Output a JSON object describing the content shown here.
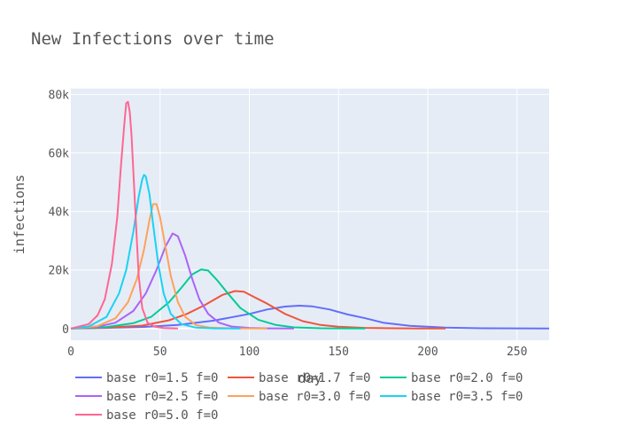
{
  "chart_data": {
    "type": "line",
    "title": "New Infections over time",
    "xlabel": "day",
    "ylabel": "infections",
    "xlim": [
      0,
      268
    ],
    "ylim": [
      -4000,
      82000
    ],
    "x_ticks": [
      0,
      50,
      100,
      150,
      200,
      250
    ],
    "x_tick_labels": [
      "0",
      "50",
      "100",
      "150",
      "200",
      "250"
    ],
    "y_ticks": [
      0,
      20000,
      40000,
      60000,
      80000
    ],
    "y_tick_labels": [
      "0",
      "20k",
      "40k",
      "60k",
      "80k"
    ],
    "grid": true,
    "legend_position": "bottom",
    "series": [
      {
        "name": "base r0=1.5 f=0",
        "color": "#636efa",
        "x": [
          0,
          20,
          40,
          60,
          80,
          100,
          110,
          120,
          128,
          135,
          145,
          155,
          165,
          175,
          190,
          210,
          230,
          268
        ],
        "y": [
          0,
          200,
          500,
          1200,
          2700,
          5000,
          6500,
          7500,
          7800,
          7600,
          6500,
          4800,
          3500,
          2000,
          900,
          300,
          100,
          0
        ]
      },
      {
        "name": "base r0=1.7 f=0",
        "color": "#ef553b",
        "x": [
          0,
          20,
          40,
          55,
          65,
          75,
          85,
          92,
          97,
          102,
          110,
          120,
          130,
          140,
          150,
          165,
          180,
          195,
          210
        ],
        "y": [
          0,
          300,
          1000,
          2800,
          5000,
          8000,
          11500,
          12800,
          12600,
          11000,
          8500,
          5000,
          2500,
          1200,
          600,
          200,
          80,
          20,
          0
        ]
      },
      {
        "name": "base r0=2.0 f=0",
        "color": "#00cc96",
        "x": [
          0,
          20,
          35,
          45,
          55,
          62,
          68,
          73,
          77,
          82,
          88,
          95,
          105,
          115,
          125,
          140,
          165
        ],
        "y": [
          0,
          500,
          1800,
          4000,
          9000,
          14000,
          18500,
          20200,
          19800,
          16500,
          12000,
          7000,
          3000,
          1200,
          400,
          100,
          0
        ]
      },
      {
        "name": "base r0=2.5 f=0",
        "color": "#ab63fa",
        "x": [
          0,
          15,
          25,
          35,
          42,
          48,
          53,
          57,
          60,
          64,
          68,
          72,
          77,
          83,
          90,
          100,
          110,
          125
        ],
        "y": [
          0,
          600,
          2000,
          6000,
          12000,
          20000,
          28000,
          32500,
          31500,
          25000,
          17000,
          10000,
          5000,
          2000,
          700,
          200,
          50,
          0
        ]
      },
      {
        "name": "base r0=3.0 f=0",
        "color": "#ffa15a",
        "x": [
          0,
          15,
          25,
          32,
          37,
          41,
          44,
          46,
          48,
          50,
          53,
          56,
          60,
          64,
          70,
          78,
          90,
          110
        ],
        "y": [
          0,
          800,
          3500,
          9000,
          17000,
          27000,
          37000,
          42500,
          42500,
          38000,
          28000,
          18000,
          9000,
          4000,
          1200,
          300,
          50,
          0
        ]
      },
      {
        "name": "base r0=3.5 f=0",
        "color": "#19d3f3",
        "x": [
          0,
          10,
          20,
          27,
          31,
          35,
          38,
          40,
          41,
          42,
          44,
          46,
          49,
          52,
          56,
          62,
          70,
          80,
          95
        ],
        "y": [
          0,
          700,
          4000,
          12000,
          20000,
          33000,
          45000,
          51000,
          52500,
          52000,
          46000,
          36000,
          22000,
          12000,
          5000,
          1500,
          300,
          50,
          0
        ]
      },
      {
        "name": "base r0=5.0 f=0",
        "color": "#ff6692",
        "x": [
          0,
          10,
          15,
          19,
          23,
          26,
          28,
          30,
          31,
          32,
          33,
          34,
          36,
          38,
          40,
          43,
          47,
          52,
          60
        ],
        "y": [
          0,
          1500,
          4500,
          10000,
          22000,
          38000,
          55000,
          70000,
          77000,
          77500,
          74000,
          66000,
          42000,
          18000,
          7000,
          2000,
          600,
          150,
          0
        ]
      }
    ]
  }
}
